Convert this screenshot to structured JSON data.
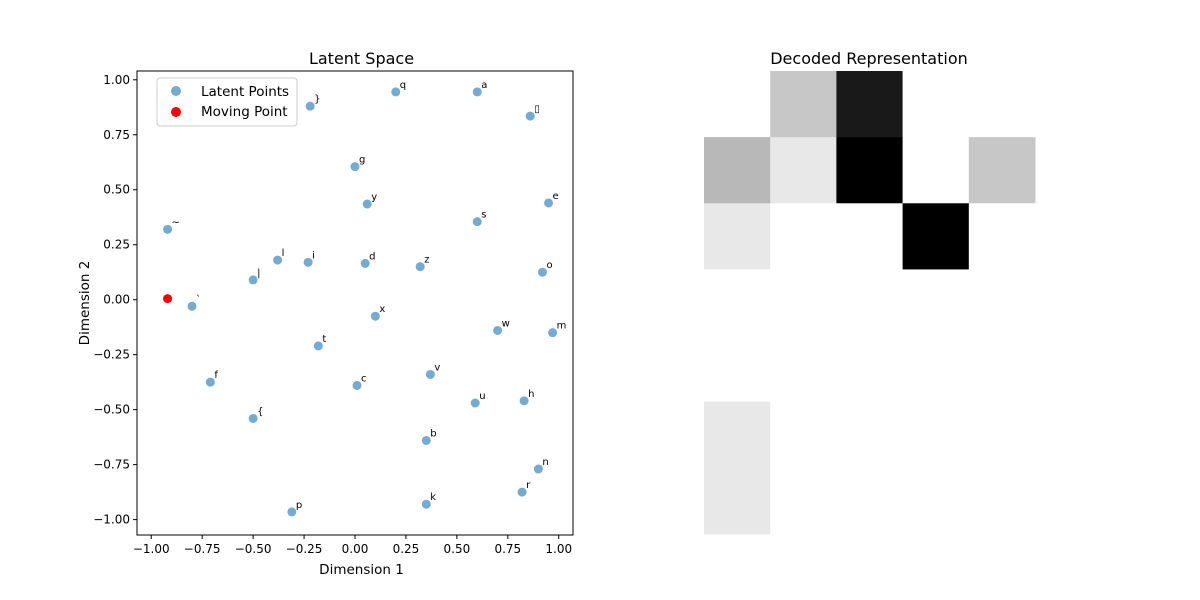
{
  "chart_data": [
    {
      "type": "scatter",
      "title": "Latent Space",
      "xlabel": "Dimension 1",
      "ylabel": "Dimension 2",
      "xlim": [
        -1.07,
        1.07
      ],
      "ylim": [
        -1.07,
        1.04
      ],
      "grid": false,
      "legend_position": "top-left",
      "xticks": [
        -1.0,
        -0.75,
        -0.5,
        -0.25,
        0.0,
        0.25,
        0.5,
        0.75,
        1.0
      ],
      "xtick_labels": [
        "−1.00",
        "−0.75",
        "−0.50",
        "−0.25",
        "0.00",
        "0.25",
        "0.50",
        "0.75",
        "1.00"
      ],
      "yticks": [
        1.0,
        0.75,
        0.5,
        0.25,
        0.0,
        -0.25,
        -0.5,
        -0.75,
        -1.0
      ],
      "ytick_labels": [
        "1.00",
        "0.75",
        "0.50",
        "0.25",
        "0.00",
        "−0.25",
        "−0.50",
        "−0.75",
        "−1.00"
      ],
      "series": [
        {
          "name": "Latent Points",
          "color": "#1f77b4",
          "points": [
            {
              "label": "q",
              "x": 0.2,
              "y": 0.945
            },
            {
              "label": "a",
              "x": 0.6,
              "y": 0.945
            },
            {
              "label": "}",
              "x": -0.22,
              "y": 0.88
            },
            {
              "label": "▯",
              "x": 0.86,
              "y": 0.835
            },
            {
              "label": "g",
              "x": 0.0,
              "y": 0.605
            },
            {
              "label": "y",
              "x": 0.06,
              "y": 0.435
            },
            {
              "label": "e",
              "x": 0.95,
              "y": 0.44
            },
            {
              "label": "s",
              "x": 0.6,
              "y": 0.355
            },
            {
              "label": "~",
              "x": -0.92,
              "y": 0.32
            },
            {
              "label": "l",
              "x": -0.38,
              "y": 0.18
            },
            {
              "label": "i",
              "x": -0.23,
              "y": 0.17
            },
            {
              "label": "d",
              "x": 0.05,
              "y": 0.165
            },
            {
              "label": "z",
              "x": 0.32,
              "y": 0.15
            },
            {
              "label": "o",
              "x": 0.92,
              "y": 0.125
            },
            {
              "label": "|",
              "x": -0.5,
              "y": 0.09
            },
            {
              "label": "`",
              "x": -0.8,
              "y": -0.03
            },
            {
              "label": "x",
              "x": 0.1,
              "y": -0.075
            },
            {
              "label": "w",
              "x": 0.7,
              "y": -0.14
            },
            {
              "label": "m",
              "x": 0.97,
              "y": -0.15
            },
            {
              "label": "t",
              "x": -0.18,
              "y": -0.21
            },
            {
              "label": "v",
              "x": 0.37,
              "y": -0.34
            },
            {
              "label": "f",
              "x": -0.71,
              "y": -0.375
            },
            {
              "label": "c",
              "x": 0.01,
              "y": -0.39
            },
            {
              "label": "u",
              "x": 0.59,
              "y": -0.47
            },
            {
              "label": "h",
              "x": 0.83,
              "y": -0.46
            },
            {
              "label": "{",
              "x": -0.5,
              "y": -0.54
            },
            {
              "label": "b",
              "x": 0.35,
              "y": -0.64
            },
            {
              "label": "n",
              "x": 0.9,
              "y": -0.77
            },
            {
              "label": "r",
              "x": 0.82,
              "y": -0.875
            },
            {
              "label": "k",
              "x": 0.35,
              "y": -0.93
            },
            {
              "label": "p",
              "x": -0.31,
              "y": -0.965
            }
          ]
        },
        {
          "name": "Moving Point",
          "color": "#ff0000",
          "points": [
            {
              "label": "",
              "x": -0.92,
              "y": 0.005
            }
          ]
        }
      ]
    },
    {
      "type": "heatmap",
      "title": "Decoded Representation",
      "colormap": "gray_r",
      "rows": 7,
      "cols": 5,
      "values": [
        [
          0.0,
          0.22,
          0.9,
          0.0,
          0.0
        ],
        [
          0.28,
          0.09,
          1.0,
          0.0,
          0.22
        ],
        [
          0.09,
          0.0,
          0.0,
          1.0,
          0.0
        ],
        [
          0.0,
          0.0,
          0.0,
          0.0,
          0.0
        ],
        [
          0.0,
          0.0,
          0.0,
          0.0,
          0.0
        ],
        [
          0.09,
          0.0,
          0.0,
          0.0,
          0.0
        ],
        [
          0.09,
          0.0,
          0.0,
          0.0,
          0.0
        ]
      ]
    }
  ]
}
